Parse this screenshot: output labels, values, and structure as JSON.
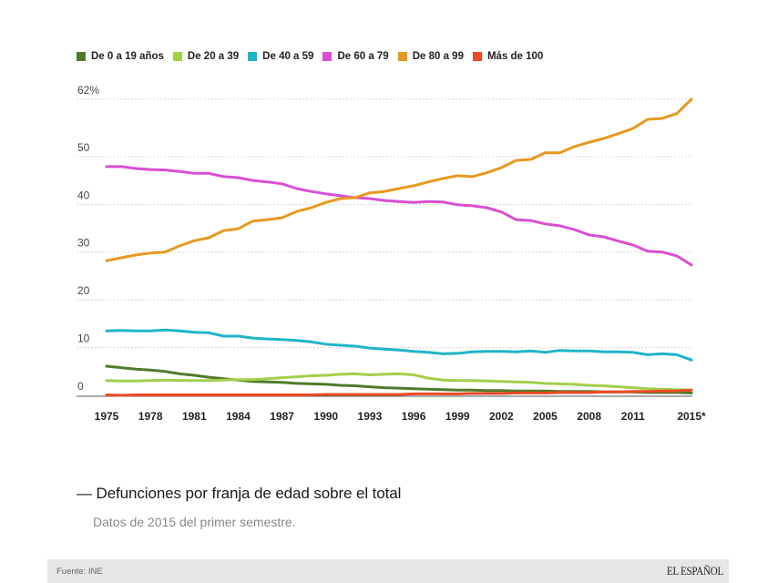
{
  "chart_data": {
    "type": "line",
    "title": "Defunciones por franja de edad sobre el total",
    "subtitle": "Datos de 2015 del primer semestre.",
    "xlabel": "",
    "ylabel": "",
    "x": [
      1975,
      1976,
      1977,
      1978,
      1979,
      1980,
      1981,
      1982,
      1983,
      1984,
      1985,
      1986,
      1987,
      1988,
      1989,
      1990,
      1991,
      1992,
      1993,
      1994,
      1995,
      1996,
      1997,
      1998,
      1999,
      2000,
      2001,
      2002,
      2003,
      2004,
      2005,
      2006,
      2007,
      2008,
      2009,
      2010,
      2011,
      2012,
      2013,
      2014,
      2015
    ],
    "xticks": [
      {
        "value": 1975,
        "label": "1975"
      },
      {
        "value": 1978,
        "label": "1978"
      },
      {
        "value": 1981,
        "label": "1981"
      },
      {
        "value": 1984,
        "label": "1984"
      },
      {
        "value": 1987,
        "label": "1987"
      },
      {
        "value": 1990,
        "label": "1990"
      },
      {
        "value": 1993,
        "label": "1993"
      },
      {
        "value": 1996,
        "label": "1996"
      },
      {
        "value": 1999,
        "label": "1999"
      },
      {
        "value": 2002,
        "label": "2002"
      },
      {
        "value": 2005,
        "label": "2005"
      },
      {
        "value": 2008,
        "label": "2008"
      },
      {
        "value": 2011,
        "label": "2011"
      },
      {
        "value": 2015,
        "label": "2015*"
      }
    ],
    "yticks": [
      {
        "value": 0,
        "label": "0"
      },
      {
        "value": 10,
        "label": "10"
      },
      {
        "value": 20,
        "label": "20"
      },
      {
        "value": 30,
        "label": "30"
      },
      {
        "value": 40,
        "label": "40"
      },
      {
        "value": 50,
        "label": "50"
      },
      {
        "value": 62,
        "label": "62%"
      }
    ],
    "ylim": [
      0,
      62
    ],
    "xlim": [
      1975,
      2015
    ],
    "grid": true,
    "legend_position": "top-left",
    "series": [
      {
        "name": "De 0 a 19 años",
        "color": "#4f7a2b",
        "values": [
          6.1,
          5.8,
          5.5,
          5.3,
          5.0,
          4.5,
          4.2,
          3.8,
          3.5,
          3.2,
          2.9,
          2.8,
          2.7,
          2.5,
          2.4,
          2.3,
          2.1,
          2.0,
          1.8,
          1.6,
          1.5,
          1.4,
          1.3,
          1.2,
          1.1,
          1.1,
          1.0,
          1.0,
          0.9,
          0.9,
          0.9,
          0.8,
          0.8,
          0.8,
          0.7,
          0.7,
          0.7,
          0.6,
          0.6,
          0.6,
          0.5
        ]
      },
      {
        "name": "De 20 a 39",
        "color": "#a3cf4a",
        "values": [
          3.1,
          3.0,
          3.0,
          3.1,
          3.2,
          3.1,
          3.1,
          3.1,
          3.2,
          3.3,
          3.3,
          3.5,
          3.7,
          3.9,
          4.1,
          4.2,
          4.4,
          4.5,
          4.3,
          4.4,
          4.5,
          4.3,
          3.6,
          3.2,
          3.1,
          3.1,
          3.0,
          2.9,
          2.8,
          2.7,
          2.5,
          2.4,
          2.3,
          2.1,
          2.0,
          1.8,
          1.6,
          1.4,
          1.3,
          1.2,
          1.1
        ]
      },
      {
        "name": "De 40 a 59",
        "color": "#1fb5c7",
        "values": [
          13.5,
          13.6,
          13.5,
          13.5,
          13.7,
          13.5,
          13.2,
          13.1,
          12.4,
          12.4,
          12.0,
          11.8,
          11.7,
          11.5,
          11.2,
          10.7,
          10.5,
          10.3,
          9.9,
          9.7,
          9.5,
          9.2,
          9.0,
          8.7,
          8.8,
          9.1,
          9.2,
          9.2,
          9.1,
          9.3,
          9.0,
          9.4,
          9.3,
          9.3,
          9.1,
          9.1,
          9.0,
          8.5,
          8.7,
          8.5,
          7.4
        ]
      },
      {
        "name": "De 60 a 79",
        "color": "#d94ed4",
        "values": [
          47.9,
          47.9,
          47.5,
          47.3,
          47.2,
          46.9,
          46.5,
          46.5,
          45.8,
          45.6,
          45.0,
          44.7,
          44.3,
          43.3,
          42.7,
          42.2,
          41.8,
          41.4,
          41.2,
          40.8,
          40.6,
          40.4,
          40.6,
          40.5,
          39.9,
          39.7,
          39.3,
          38.4,
          36.8,
          36.6,
          35.9,
          35.5,
          34.7,
          33.6,
          33.2,
          32.3,
          31.5,
          30.2,
          30.0,
          29.2,
          27.3
        ]
      },
      {
        "name": "De 80 a 99",
        "color": "#e8981f",
        "values": [
          28.2,
          28.8,
          29.4,
          29.8,
          30.0,
          31.3,
          32.4,
          33.0,
          34.5,
          34.9,
          36.5,
          36.8,
          37.2,
          38.5,
          39.3,
          40.4,
          41.2,
          41.4,
          42.4,
          42.7,
          43.3,
          43.9,
          44.7,
          45.4,
          46.0,
          45.8,
          46.6,
          47.7,
          49.2,
          49.4,
          50.8,
          50.8,
          52.1,
          53.0,
          53.8,
          54.8,
          55.9,
          57.8,
          58.0,
          59.0,
          62.0
        ]
      },
      {
        "name": "Más de 100",
        "color": "#ec4a24",
        "values": [
          0.1,
          0.0,
          0.1,
          0.1,
          0.1,
          0.1,
          0.1,
          0.1,
          0.1,
          0.1,
          0.1,
          0.1,
          0.1,
          0.1,
          0.1,
          0.2,
          0.2,
          0.2,
          0.2,
          0.2,
          0.2,
          0.3,
          0.3,
          0.3,
          0.3,
          0.4,
          0.4,
          0.4,
          0.5,
          0.5,
          0.5,
          0.6,
          0.6,
          0.6,
          0.7,
          0.7,
          0.8,
          0.8,
          0.9,
          0.9,
          1.1
        ]
      }
    ]
  },
  "caption": {
    "title": "— Defunciones por franja de edad sobre el total",
    "note": "Datos de 2015 del primer semestre."
  },
  "footer": {
    "source": "Fuente: INE",
    "brand": "EL ESPAÑOL"
  }
}
